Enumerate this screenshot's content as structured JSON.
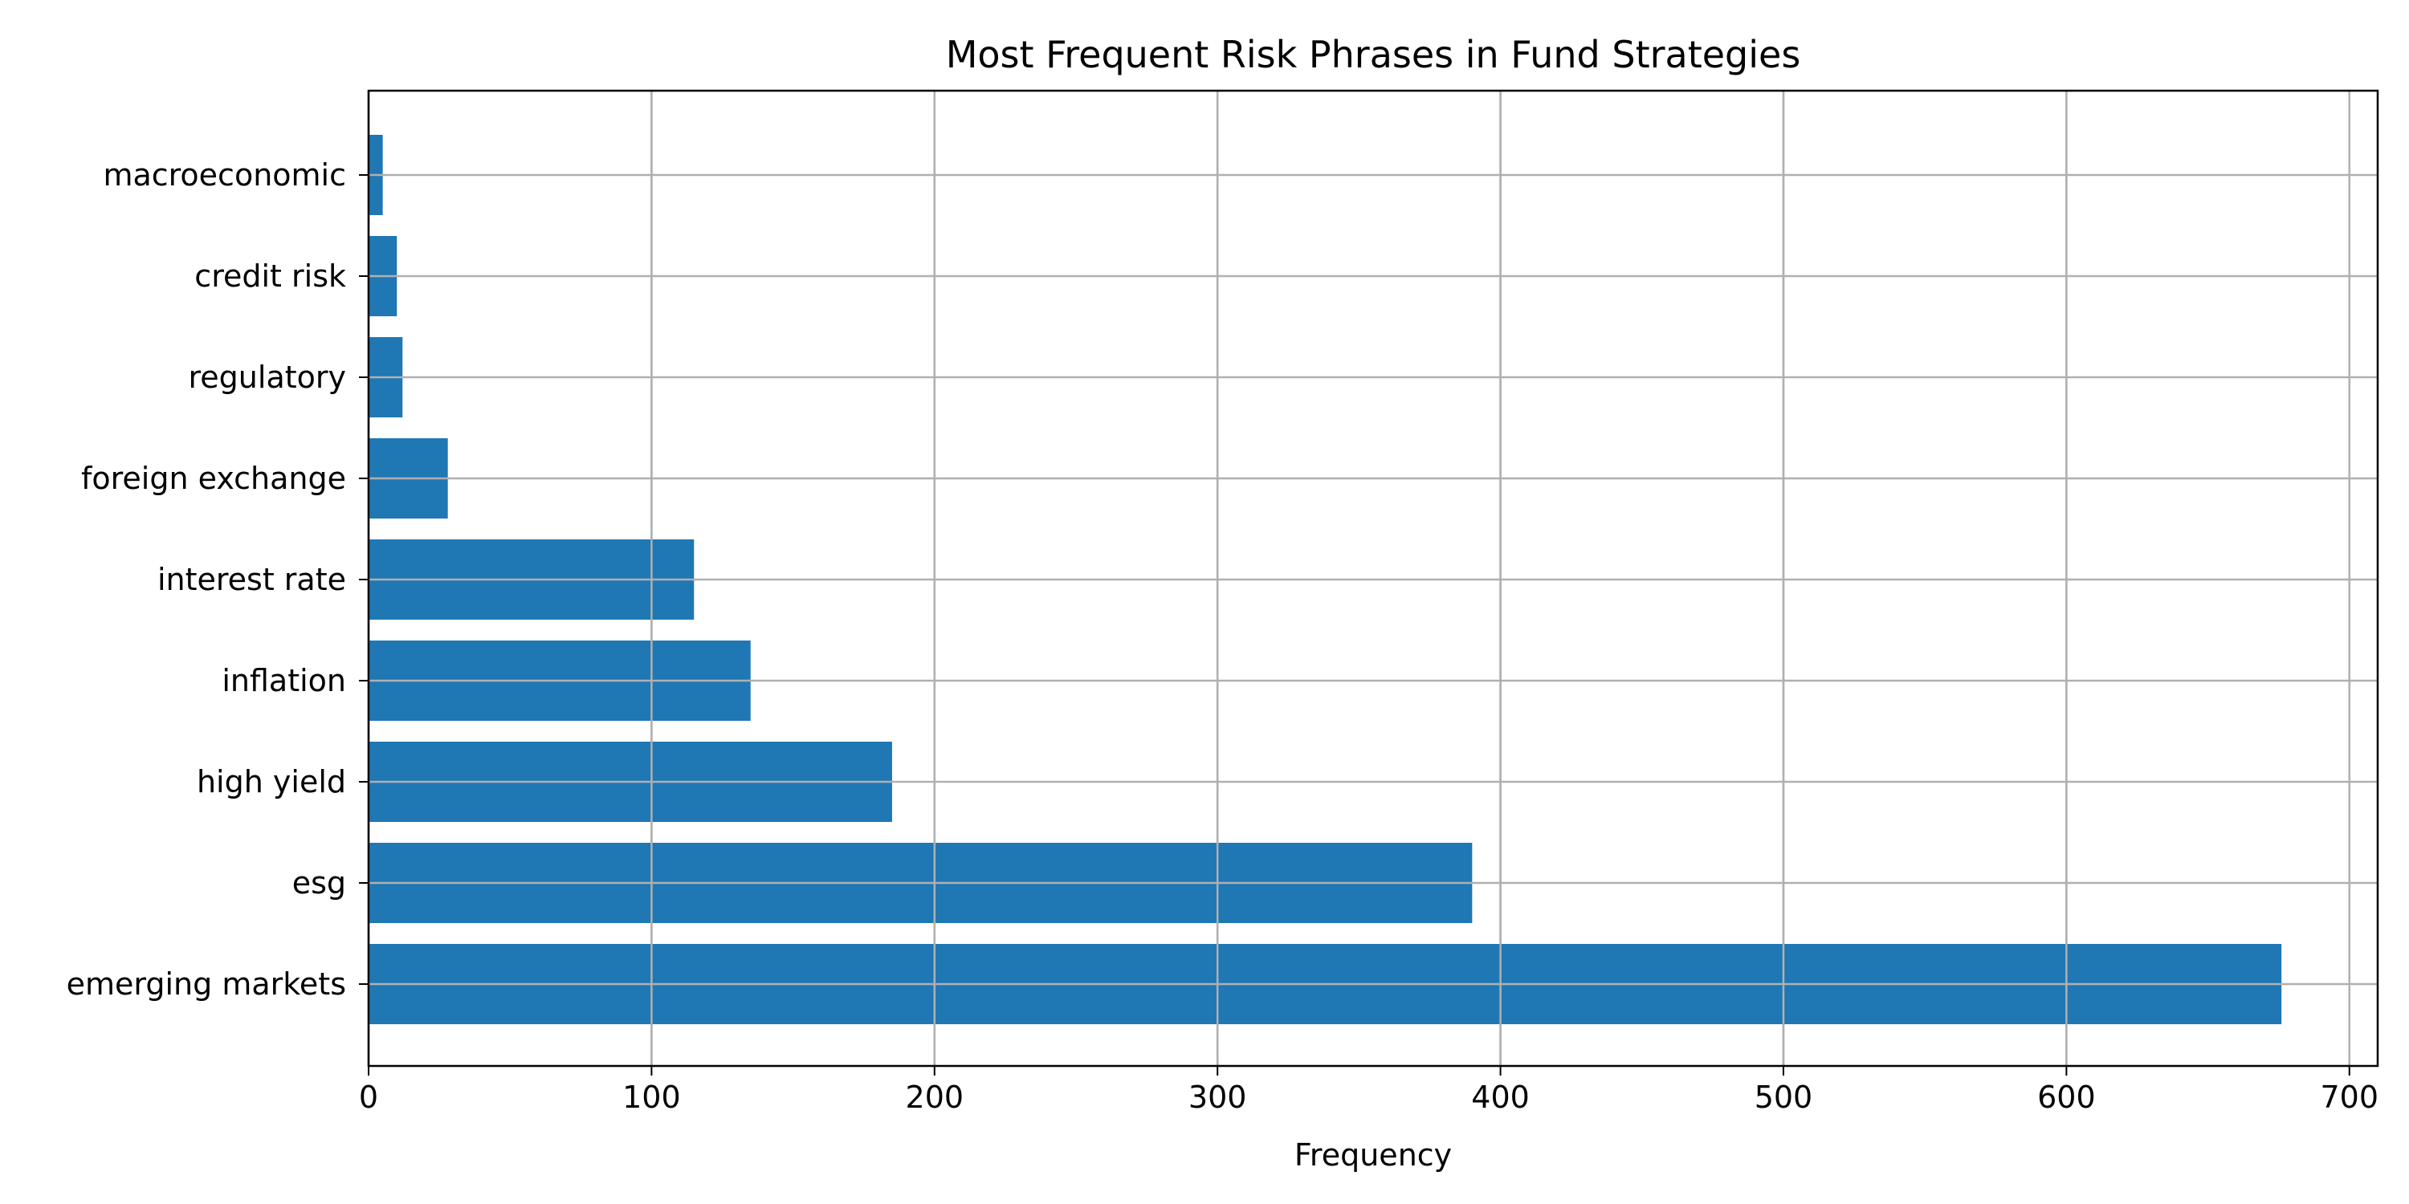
{
  "chart_data": {
    "type": "bar",
    "orientation": "horizontal",
    "title": "Most Frequent Risk Phrases in Fund Strategies",
    "xlabel": "Frequency",
    "ylabel": "",
    "categories": [
      "emerging markets",
      "esg",
      "high yield",
      "inflation",
      "interest rate",
      "foreign exchange",
      "regulatory",
      "credit risk",
      "macroeconomic"
    ],
    "values": [
      676,
      390,
      185,
      135,
      115,
      28,
      12,
      10,
      5
    ],
    "xlim": [
      0,
      710
    ],
    "xticks": [
      0,
      100,
      200,
      300,
      400,
      500,
      600,
      700
    ],
    "xtick_labels": [
      "0",
      "100",
      "200",
      "300",
      "400",
      "500",
      "600",
      "700"
    ],
    "grid": true,
    "bar_color": "#1f77b4",
    "grid_color": "#b0b0b0"
  }
}
